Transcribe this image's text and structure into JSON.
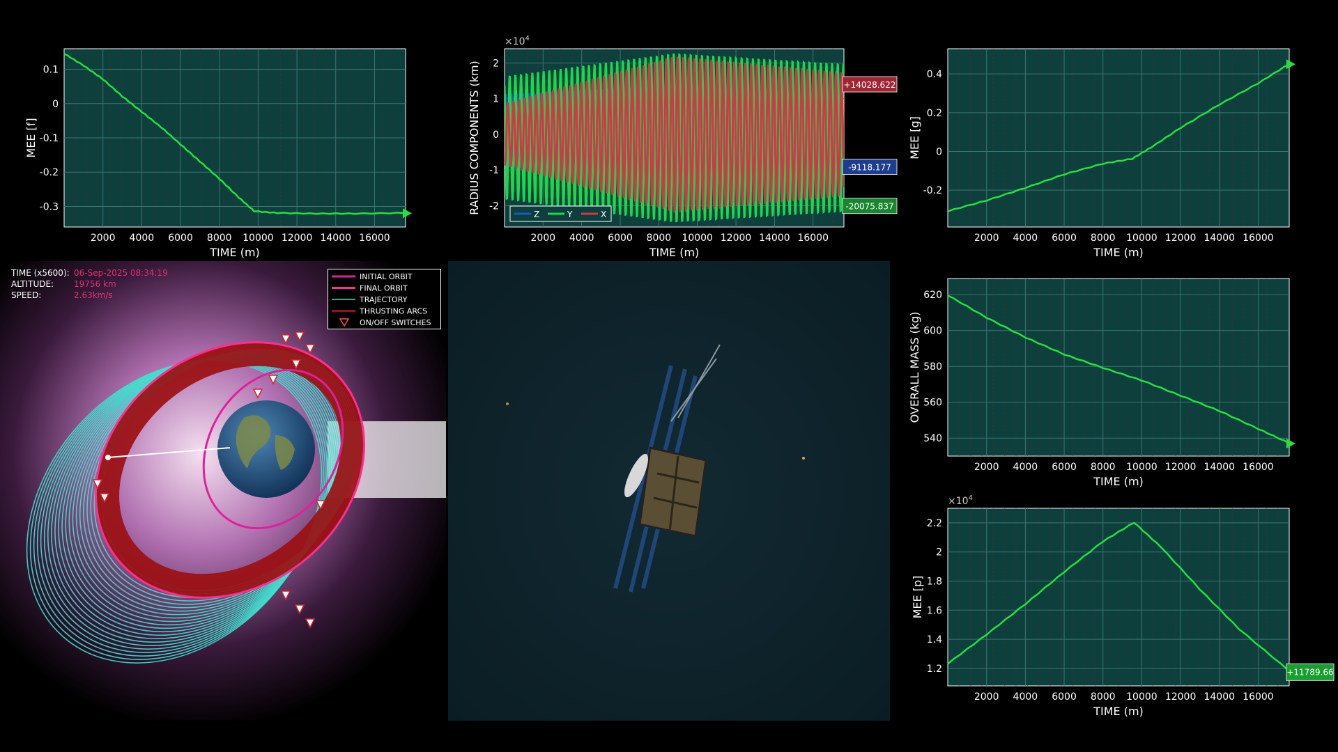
{
  "colors": {
    "plot_bg": "#0d3f3c",
    "grid": "#3f7c78",
    "curve": "#21e23d",
    "x_series": "#d7344a",
    "y_series": "#19d94b",
    "z_series": "#1b57c9",
    "initial_orbit": "#e0209a",
    "final_orbit": "#ff2e8e",
    "trajectory": "#40e0d0",
    "thrusting": "#9b0f12",
    "info_value": "#e0336e"
  },
  "info": {
    "time_label": "TIME (x5600):",
    "time_value": "06-Sep-2025 08:34:19",
    "altitude_label": "ALTITUDE:",
    "altitude_value": "19756 km",
    "speed_label": "SPEED:",
    "speed_value": "2.63km/s"
  },
  "orbit_legend": [
    {
      "label": "INITIAL ORBIT",
      "kind": "initial"
    },
    {
      "label": "FINAL ORBIT",
      "kind": "final"
    },
    {
      "label": "TRAJECTORY",
      "kind": "trajectory"
    },
    {
      "label": "THRUSTING ARCS",
      "kind": "thrusting"
    },
    {
      "label": "ON/OFF SWITCHES",
      "kind": "switch"
    }
  ],
  "chart_data": [
    {
      "id": "mee-f",
      "type": "line",
      "xlabel": "TIME (m)",
      "ylabel": "MEE [f]",
      "xlim": [
        0,
        17600
      ],
      "ylim": [
        -0.36,
        0.16
      ],
      "xticks": [
        2000,
        4000,
        6000,
        8000,
        10000,
        12000,
        14000,
        16000
      ],
      "xtick_labels": [
        "2000",
        "4000",
        "6000",
        "8000",
        "10000",
        "12000",
        "14000",
        "16000"
      ],
      "yticks": [
        0.1,
        0,
        -0.1,
        -0.2,
        -0.3
      ],
      "ytick_labels": [
        "0.1",
        "0",
        "-0.1",
        "-0.2",
        "-0.3"
      ],
      "grid": true,
      "end_marker": true,
      "series": [
        {
          "x": [
            0,
            1000,
            2000,
            3000,
            4000,
            5000,
            6000,
            7000,
            8000,
            9000,
            9800,
            11000,
            13000,
            15000,
            17600
          ],
          "y": [
            0.145,
            0.11,
            0.07,
            0.02,
            -0.025,
            -0.07,
            -0.12,
            -0.17,
            -0.22,
            -0.275,
            -0.315,
            -0.32,
            -0.322,
            -0.322,
            -0.32
          ]
        }
      ]
    },
    {
      "id": "radius",
      "type": "line",
      "xlabel": "TIME (m)",
      "ylabel": "RADIUS COMPONENTS (km)",
      "exponent_label": "×10",
      "exponent_power": "4",
      "xlim": [
        0,
        17600
      ],
      "ylim": [
        -2.6,
        2.4
      ],
      "xticks": [
        2000,
        4000,
        6000,
        8000,
        10000,
        12000,
        14000,
        16000
      ],
      "xtick_labels": [
        "2000",
        "4000",
        "6000",
        "8000",
        "10000",
        "12000",
        "14000",
        "16000"
      ],
      "yticks": [
        2,
        1,
        0,
        -1,
        -2
      ],
      "ytick_labels": [
        "2",
        "1",
        "0",
        "-1",
        "-2"
      ],
      "grid": true,
      "legend": "bottom-left",
      "oscillation_cycles": 60,
      "series": [
        {
          "name": "Z",
          "color": "#1b57c9",
          "center": 0.1,
          "amp_start": 1.0,
          "amp_mid": 1.25,
          "amp_end": 0.95,
          "phase": 0.0
        },
        {
          "name": "Y",
          "color": "#19d94b",
          "center": -0.1,
          "amp_start": 1.7,
          "amp_mid": 2.35,
          "amp_end": 2.05,
          "phase": 2.1
        },
        {
          "name": "X",
          "color": "#d7344a",
          "center": 0.0,
          "amp_start": 0.85,
          "amp_mid": 2.15,
          "amp_end": 1.7,
          "phase": 4.2
        }
      ],
      "end_labels": [
        {
          "text": "+14028.622",
          "color": "#a02432",
          "y": 1.4028
        },
        {
          "text": "-9118.177",
          "color": "#1d3d8f",
          "y": -0.9118
        },
        {
          "text": "-20075.837",
          "color": "#18862f",
          "y": -2.0075
        }
      ]
    },
    {
      "id": "mee-g",
      "type": "line",
      "xlabel": "TIME (m)",
      "ylabel": "MEE [g]",
      "xlim": [
        0,
        17600
      ],
      "ylim": [
        -0.39,
        0.53
      ],
      "xticks": [
        2000,
        4000,
        6000,
        8000,
        10000,
        12000,
        14000,
        16000
      ],
      "xtick_labels": [
        "2000",
        "4000",
        "6000",
        "8000",
        "10000",
        "12000",
        "14000",
        "16000"
      ],
      "yticks": [
        0.4,
        0.2,
        0,
        -0.2
      ],
      "ytick_labels": [
        "0.4",
        "0.2",
        "0",
        "-0.2"
      ],
      "grid": true,
      "end_marker": true,
      "series": [
        {
          "x": [
            0,
            2000,
            4000,
            6000,
            8000,
            9500,
            10500,
            12000,
            14000,
            16000,
            17600
          ],
          "y": [
            -0.31,
            -0.255,
            -0.19,
            -0.12,
            -0.065,
            -0.04,
            0.02,
            0.12,
            0.24,
            0.35,
            0.45
          ]
        }
      ]
    },
    {
      "id": "mass",
      "type": "line",
      "xlabel": "TIME (m)",
      "ylabel": "OVERALL MASS (kg)",
      "xlim": [
        0,
        17600
      ],
      "ylim": [
        530,
        629
      ],
      "xticks": [
        2000,
        4000,
        6000,
        8000,
        10000,
        12000,
        14000,
        16000
      ],
      "xtick_labels": [
        "2000",
        "4000",
        "6000",
        "8000",
        "10000",
        "12000",
        "14000",
        "16000"
      ],
      "yticks": [
        620,
        600,
        580,
        560,
        540
      ],
      "ytick_labels": [
        "620",
        "600",
        "580",
        "560",
        "540"
      ],
      "grid": true,
      "end_marker": true,
      "series": [
        {
          "x": [
            0,
            2000,
            4000,
            6000,
            8000,
            10000,
            12000,
            14000,
            16000,
            17600
          ],
          "y": [
            619.5,
            607,
            596,
            586.5,
            579,
            572,
            563.5,
            555,
            545,
            537
          ]
        }
      ]
    },
    {
      "id": "mee-p",
      "type": "line",
      "xlabel": "TIME (m)",
      "ylabel": "MEE [p]",
      "exponent_label": "×10",
      "exponent_power": "4",
      "xlim": [
        0,
        17600
      ],
      "ylim": [
        1.08,
        2.3
      ],
      "xticks": [
        2000,
        4000,
        6000,
        8000,
        10000,
        12000,
        14000,
        16000
      ],
      "xtick_labels": [
        "2000",
        "4000",
        "6000",
        "8000",
        "10000",
        "12000",
        "14000",
        "16000"
      ],
      "yticks": [
        2.2,
        2,
        1.8,
        1.6,
        1.4,
        1.2
      ],
      "ytick_labels": [
        "2.2",
        "2",
        "1.8",
        "1.6",
        "1.4",
        "1.2"
      ],
      "grid": true,
      "end_label": {
        "text": "+11789.66",
        "color": "#16a02e",
        "y": 1.1789
      },
      "series": [
        {
          "x": [
            0,
            2000,
            4000,
            6000,
            8000,
            9600,
            11000,
            13000,
            15000,
            17600
          ],
          "y": [
            1.23,
            1.43,
            1.64,
            1.86,
            2.07,
            2.2,
            2.03,
            1.74,
            1.47,
            1.18
          ]
        }
      ]
    }
  ]
}
